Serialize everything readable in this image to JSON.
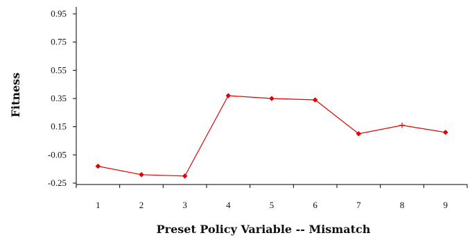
{
  "chart_data": {
    "type": "line",
    "title": "",
    "xlabel": "Preset Policy Variable -- Mismatch",
    "ylabel": "Fitness",
    "x": [
      "1",
      "2",
      "3",
      "4",
      "5",
      "6",
      "7",
      "8",
      "9"
    ],
    "y_ticks": [
      "0.95",
      "0.75",
      "0.55",
      "0.35",
      "0.15",
      "-0.05",
      "-0.25"
    ],
    "ylim": [
      -0.25,
      0.95
    ],
    "grid": false,
    "series": [
      {
        "values": [
          -0.13,
          -0.19,
          -0.2,
          0.37,
          0.35,
          0.34,
          0.1,
          0.16,
          0.11
        ],
        "color": "#e00000",
        "markers": [
          "diamond",
          "diamond",
          "diamond",
          "diamond",
          "diamond",
          "diamond",
          "diamond",
          "plus",
          "diamond"
        ]
      }
    ]
  }
}
